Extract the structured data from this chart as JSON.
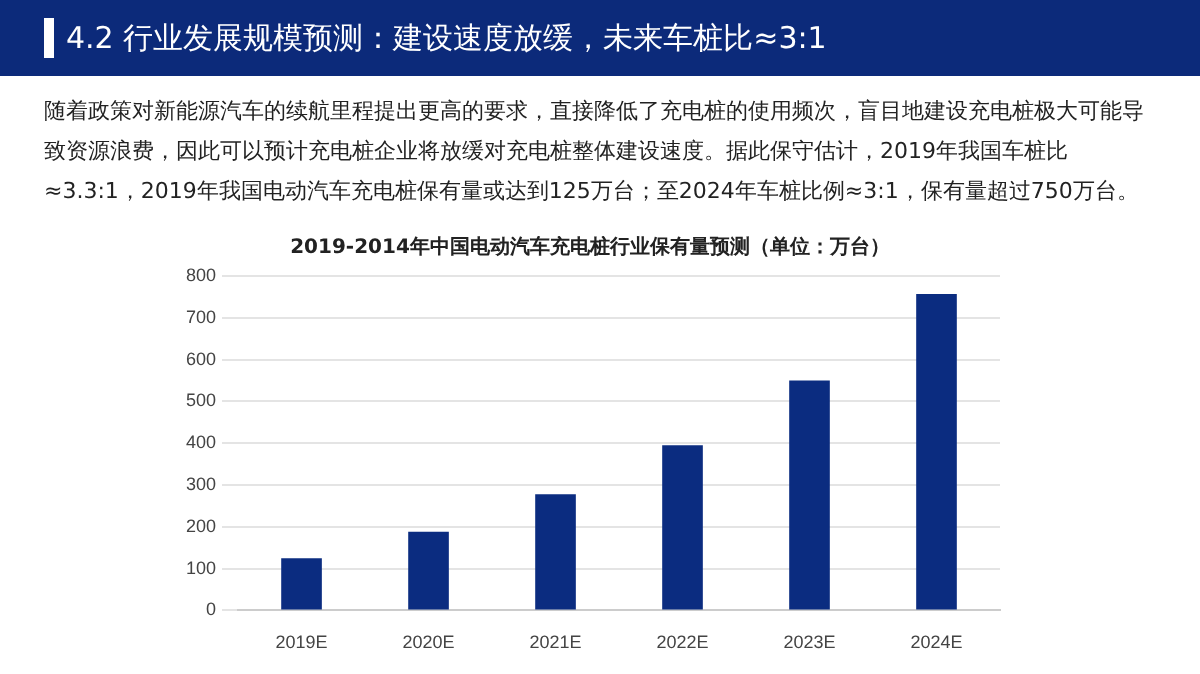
{
  "chart_data": {
    "type": "bar",
    "title": "4.2 行业发展规模预测：建设速度放缓，未来车桩比≈3:1",
    "subtitle": "随着政策对新能源汽车的续航里程提出更高的要求，直接降低了充电桩的使用频次，盲目地建设充电桩极大可能导致资源浪费，因此可以预计充电桩企业将放缓对充电桩整体建设速度。据此保守估计，2019年我国车桩比≈3.3:1，2019年我国电动汽车充电桩保有量或达到125万台；至2024年车桩比例≈3:1，保有量超过750万台。",
    "annotations": [
      "2019-2014年中国电动汽车充电桩行业保有量预测（单位：万台）"
    ],
    "categories": [
      "2019E",
      "2020E",
      "2021E",
      "2022E",
      "2023E",
      "2024E"
    ],
    "values": [
      125,
      188,
      278,
      395,
      550,
      757
    ],
    "color": "#0b2c80",
    "ylim": [
      0,
      800
    ],
    "yticks": [
      0,
      100,
      200,
      300,
      400,
      500,
      600,
      700,
      800
    ],
    "grid": "y",
    "legend": false
  }
}
